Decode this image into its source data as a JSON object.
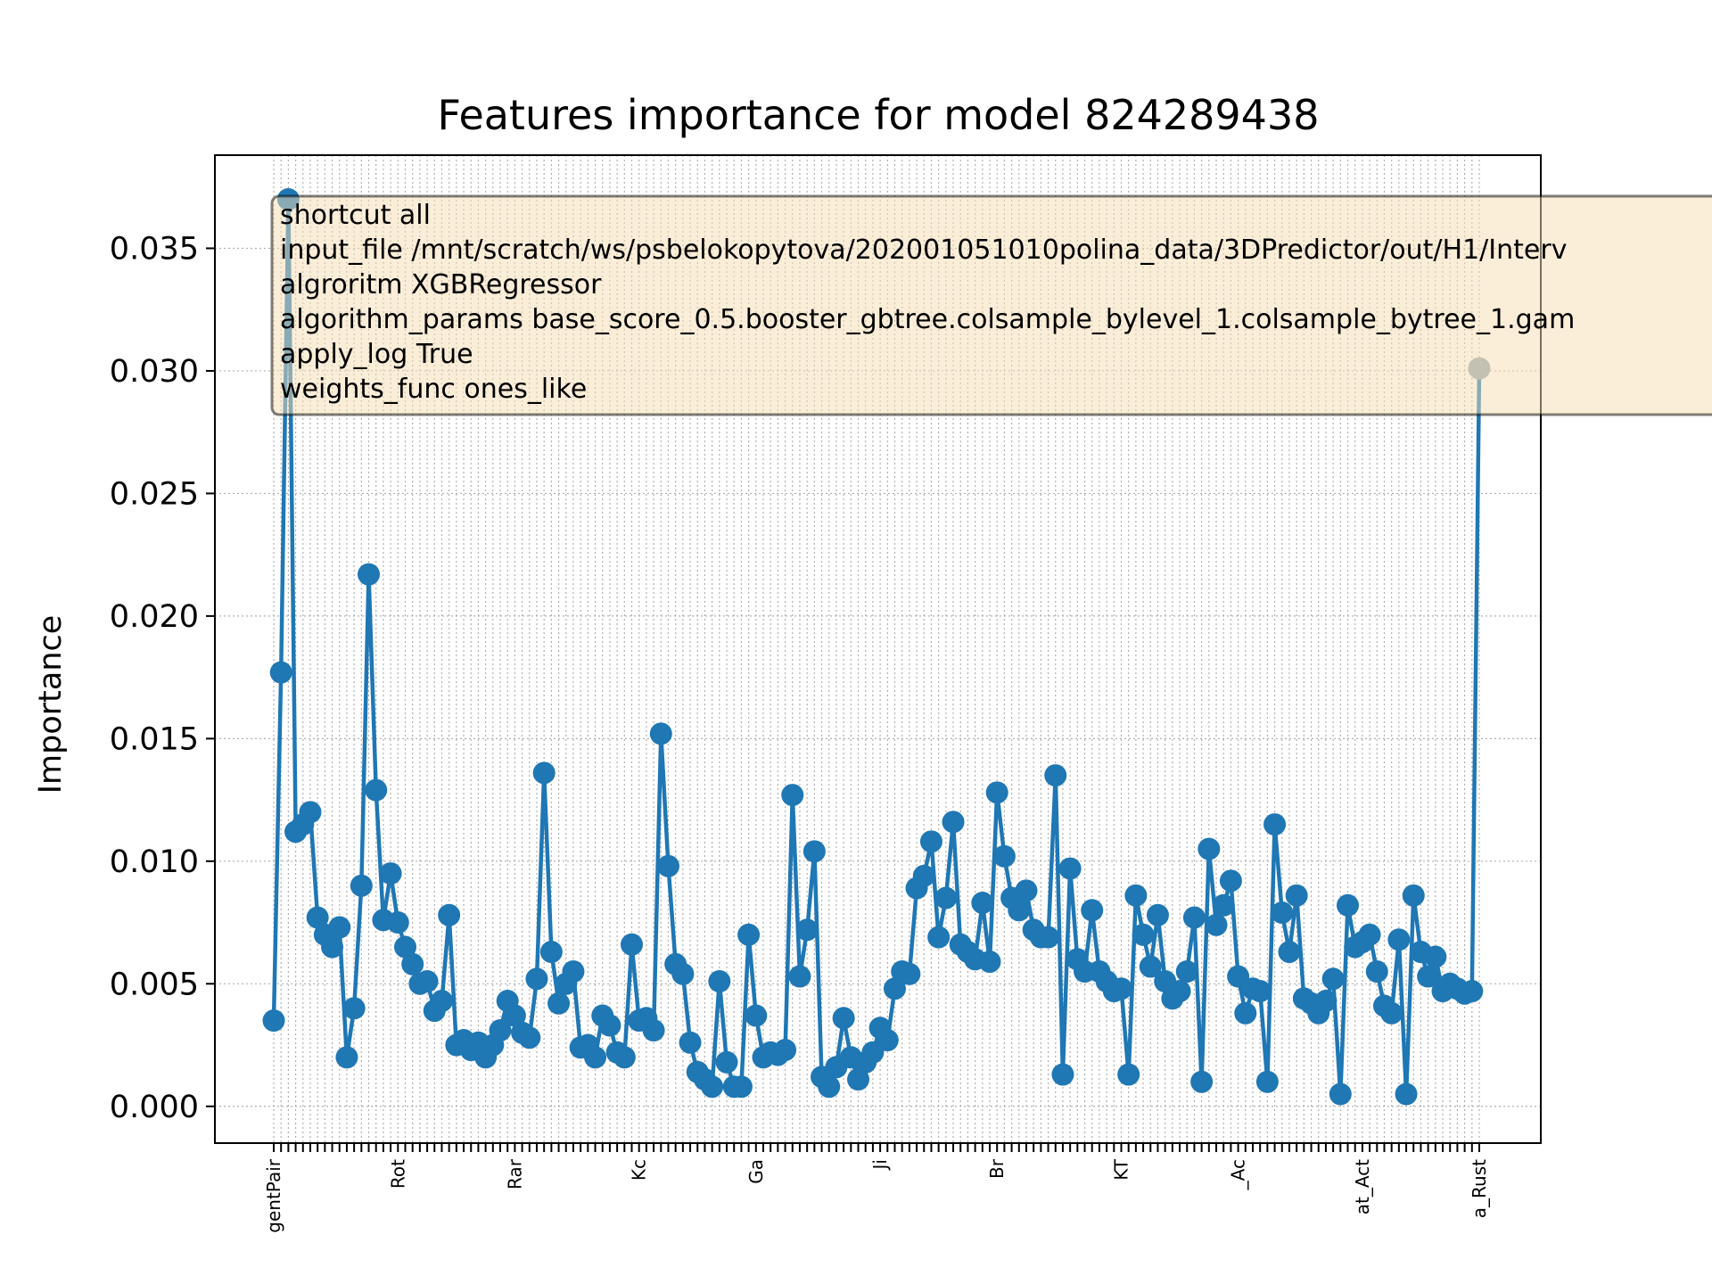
{
  "chart_data": {
    "type": "line",
    "title": "Features importance for model 824289438",
    "xlabel": "",
    "ylabel": "Importance",
    "ylim": [
      -0.0015,
      0.0388
    ],
    "yticks": [
      "0.000",
      "0.005",
      "0.010",
      "0.015",
      "0.020",
      "0.025",
      "0.030",
      "0.035"
    ],
    "grid": true,
    "line_color": "#1f77b4",
    "last_point_color": "#90a4b0",
    "x_tick_labels_visible": [
      "gentPair",
      "Rot",
      "Rar",
      "Kc",
      "Ga",
      "Ji",
      "Br",
      "KT",
      "_Ac",
      "at_Act",
      "a_Rust"
    ],
    "annotation": [
      "shortcut all",
      "input_file /mnt/scratch/ws/psbelokopytova/202001051010polina_data/3DPredictor/out/H1/Interv",
      "algroritm XGBRegressor",
      "algorithm_params base_score_0.5.booster_gbtree.colsample_bylevel_1.colsample_bytree_1.gam",
      "apply_log True",
      "weights_func ones_like"
    ],
    "values": [
      0.0035,
      0.0177,
      0.037,
      0.0112,
      0.0115,
      0.012,
      0.0077,
      0.007,
      0.0065,
      0.0073,
      0.002,
      0.004,
      0.009,
      0.0217,
      0.0129,
      0.0076,
      0.0095,
      0.0075,
      0.0065,
      0.0058,
      0.005,
      0.0051,
      0.0039,
      0.0043,
      0.0078,
      0.0025,
      0.0027,
      0.0023,
      0.0026,
      0.002,
      0.0025,
      0.0031,
      0.0043,
      0.0037,
      0.003,
      0.0028,
      0.0052,
      0.0136,
      0.0063,
      0.0042,
      0.005,
      0.0055,
      0.0024,
      0.0025,
      0.002,
      0.0037,
      0.0033,
      0.0022,
      0.002,
      0.0066,
      0.0035,
      0.0036,
      0.0031,
      0.0152,
      0.0098,
      0.0058,
      0.0054,
      0.0026,
      0.0014,
      0.0011,
      0.0008,
      0.0051,
      0.0018,
      0.0008,
      0.0008,
      0.007,
      0.0037,
      0.002,
      0.0022,
      0.0021,
      0.0023,
      0.0127,
      0.0053,
      0.0072,
      0.0104,
      0.0012,
      0.0008,
      0.0016,
      0.0036,
      0.002,
      0.0011,
      0.0018,
      0.0022,
      0.0032,
      0.0027,
      0.0048,
      0.0055,
      0.0054,
      0.0089,
      0.0094,
      0.0108,
      0.0069,
      0.0085,
      0.0116,
      0.0066,
      0.0063,
      0.006,
      0.0083,
      0.0059,
      0.0128,
      0.0102,
      0.0085,
      0.008,
      0.0088,
      0.0072,
      0.0069,
      0.0069,
      0.0135,
      0.0013,
      0.0097,
      0.006,
      0.0055,
      0.008,
      0.0055,
      0.0051,
      0.0047,
      0.0048,
      0.0013,
      0.0086,
      0.007,
      0.0057,
      0.0078,
      0.0051,
      0.0044,
      0.0047,
      0.0055,
      0.0077,
      0.001,
      0.0105,
      0.0074,
      0.0082,
      0.0092,
      0.0053,
      0.0038,
      0.0048,
      0.0047,
      0.001,
      0.0115,
      0.0079,
      0.0063,
      0.0086,
      0.0044,
      0.0042,
      0.0038,
      0.0043,
      0.0052,
      0.0005,
      0.0082,
      0.0065,
      0.0067,
      0.007,
      0.0055,
      0.0041,
      0.0038,
      0.0068,
      0.0005,
      0.0086,
      0.0063,
      0.0053,
      0.0061,
      0.0047,
      0.005,
      0.0048,
      0.0046,
      0.0047,
      0.0301
    ]
  }
}
